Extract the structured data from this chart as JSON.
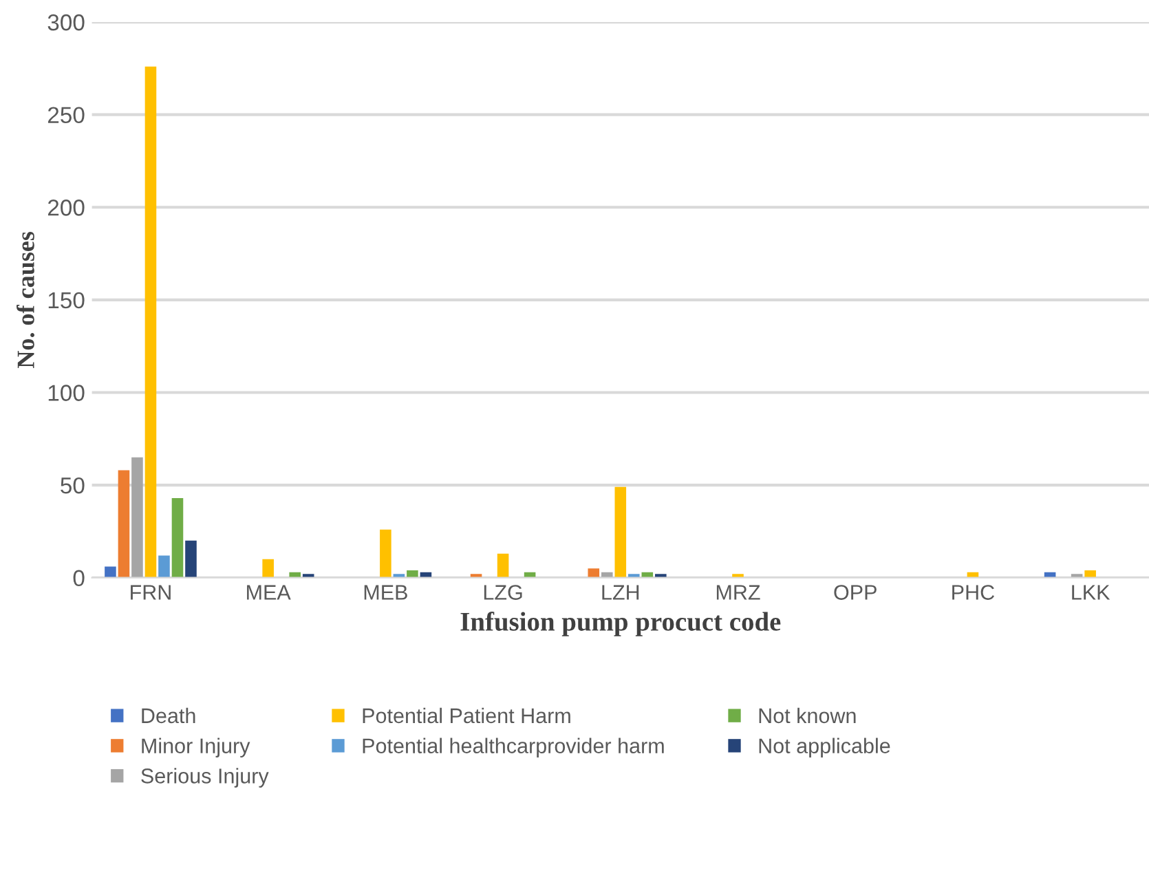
{
  "chart_data": {
    "type": "bar",
    "xlabel": "Infusion pump procuct code",
    "ylabel": "No. of causes",
    "categories": [
      "FRN",
      "MEA",
      "MEB",
      "LZG",
      "LZH",
      "MRZ",
      "OPP",
      "PHC",
      "LKK"
    ],
    "series": [
      {
        "name": "Death",
        "color": "#4472c4",
        "values": [
          6,
          0,
          0,
          0,
          0,
          0,
          0,
          0,
          3
        ]
      },
      {
        "name": "Minor Injury",
        "color": "#ed7d31",
        "values": [
          58,
          0,
          0,
          2,
          5,
          0,
          0,
          0,
          0
        ]
      },
      {
        "name": "Serious Injury",
        "color": "#a5a5a5",
        "values": [
          65,
          0,
          0,
          0,
          3,
          0,
          0,
          0,
          2
        ]
      },
      {
        "name": "Potential Patient Harm",
        "color": "#ffc000",
        "values": [
          276,
          10,
          26,
          13,
          49,
          2,
          0,
          3,
          4
        ]
      },
      {
        "name": "Potential healthcarprovider harm",
        "color": "#5b9bd5",
        "values": [
          12,
          0,
          2,
          0,
          2,
          0,
          0,
          0,
          0
        ]
      },
      {
        "name": "Not known",
        "color": "#70ad47",
        "values": [
          43,
          3,
          4,
          3,
          3,
          0,
          0,
          0,
          0
        ]
      },
      {
        "name": "Not applicable",
        "color": "#264478",
        "values": [
          20,
          2,
          3,
          0,
          2,
          0,
          0,
          0,
          0
        ]
      }
    ],
    "ylim": [
      0,
      300
    ],
    "yticks": [
      0,
      50,
      100,
      150,
      200,
      250,
      300
    ],
    "grid": "y",
    "legend": "bottom"
  }
}
